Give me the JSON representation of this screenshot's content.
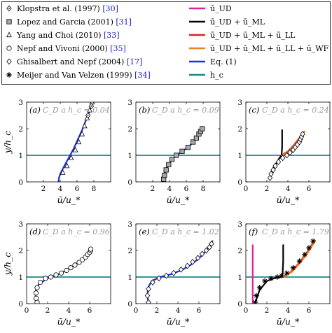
{
  "legend": {
    "datasets": [
      {
        "text": "Klopstra et al. (1997)",
        "ref": "[30]",
        "marker": "diamond-dot"
      },
      {
        "text": "Lopez and Garcia (2001)",
        "ref": "[31]",
        "marker": "square-grey"
      },
      {
        "text": "Yang and Choi (2010)",
        "ref": "[33]",
        "marker": "triangle"
      },
      {
        "text": "Nepf and Vivoni (2000)",
        "ref": "[35]",
        "marker": "circle"
      },
      {
        "text": "Ghisalbert and Nepf (2004)",
        "ref": "[17]",
        "marker": "diamond"
      },
      {
        "text": "Meijer and Van Velzen (1999)",
        "ref": "[34]",
        "marker": "asterisk"
      }
    ],
    "models": [
      {
        "text": "ū_UD",
        "color": "#e020a0"
      },
      {
        "text": "ū_UD + ū_ML",
        "color": "#000000"
      },
      {
        "text": "ū_UD + ū_ML + ū_LL",
        "color": "#e02020"
      },
      {
        "text": "ū_UD + ū_ML + ū_LL + ū_WF",
        "color": "#f08020"
      },
      {
        "text": "Eq. (1)",
        "color": "#1f2fd0"
      },
      {
        "text": "h_c",
        "color": "#1a8a8a"
      }
    ]
  },
  "axes_text": {
    "ylabel": "y/h_c",
    "xlabel": "ū/u_*"
  },
  "chart_data": [
    {
      "type": "line",
      "id": "a",
      "label": "(a)",
      "cd_label": "C_D a h_c = 0.04",
      "xlim": [
        0,
        10
      ],
      "ylim": [
        0,
        3
      ],
      "xticks": [
        2,
        4,
        6,
        8
      ],
      "yticks": [
        0,
        1,
        2,
        3
      ],
      "hc": 1,
      "series": [
        {
          "name": "Yang and Choi (2010)",
          "kind": "markers",
          "marker": "triangle",
          "x": [
            4.3,
            4.8,
            5.3,
            5.8,
            6.2,
            6.6,
            6.9,
            7.2,
            7.5,
            7.8,
            8.0,
            8.2
          ],
          "y": [
            0.35,
            0.6,
            0.9,
            1.2,
            1.5,
            1.8,
            2.1,
            2.4,
            2.7,
            3.0,
            3.25,
            3.45
          ]
        },
        {
          "name": "Klopstra et al. (1997)",
          "kind": "markers",
          "marker": "diamond-dot",
          "x": [
            7.3,
            7.7,
            8.0,
            8.3,
            8.5
          ],
          "y": [
            2.5,
            2.85,
            3.1,
            3.35,
            3.55
          ]
        },
        {
          "name": "Eq. (1)",
          "kind": "line",
          "color": "#1f2fd0",
          "x": [
            3.8,
            3.85,
            4.0,
            4.4,
            5.0,
            5.6,
            6.1,
            6.6,
            7.1,
            7.6,
            8.1,
            8.6
          ],
          "y": [
            0.0,
            0.15,
            0.3,
            0.55,
            0.9,
            1.25,
            1.6,
            1.95,
            2.35,
            2.75,
            3.15,
            3.55
          ]
        }
      ]
    },
    {
      "type": "line",
      "id": "b",
      "label": "(b)",
      "cd_label": "C_D a h_c = 0.09",
      "xlim": [
        0,
        10
      ],
      "ylim": [
        0,
        3
      ],
      "xticks": [
        2,
        4,
        6,
        8
      ],
      "yticks": [
        0,
        1,
        2,
        3
      ],
      "hc": 1,
      "series": [
        {
          "name": "Lopez and Garcia (2001)",
          "kind": "markers",
          "marker": "square-grey",
          "x": [
            3.3,
            3.4,
            3.6,
            3.9,
            4.3,
            4.8,
            5.5,
            6.2,
            6.8,
            7.2,
            7.5,
            7.7,
            7.9
          ],
          "y": [
            0.1,
            0.25,
            0.45,
            0.65,
            0.85,
            1.0,
            1.15,
            1.3,
            1.5,
            1.65,
            1.8,
            1.9,
            2.0
          ]
        },
        {
          "name": "Eq. (1)",
          "kind": "line",
          "color": "#1f2fd0",
          "x": [
            3.2,
            3.3,
            3.5,
            3.8,
            4.2,
            4.7,
            5.4,
            6.1,
            6.7,
            7.2,
            7.6,
            7.9
          ],
          "y": [
            0.0,
            0.2,
            0.4,
            0.6,
            0.8,
            0.97,
            1.12,
            1.28,
            1.45,
            1.62,
            1.8,
            1.97
          ]
        }
      ]
    },
    {
      "type": "line",
      "id": "c",
      "label": "(c)",
      "cd_label": "C_D a h_c = 0.24",
      "xlim": [
        0,
        8
      ],
      "ylim": [
        0,
        3
      ],
      "xticks": [
        0,
        2,
        4,
        6
      ],
      "yticks": [
        0,
        1,
        2,
        3
      ],
      "hc": 1,
      "series": [
        {
          "name": "ū_UD + ū_ML",
          "kind": "line",
          "color": "#000000",
          "x": [
            2.3,
            2.4,
            2.6,
            2.9,
            3.2,
            3.4,
            3.45,
            3.45
          ],
          "y": [
            0.1,
            0.3,
            0.5,
            0.7,
            0.9,
            1.0,
            1.3,
            1.95
          ]
        },
        {
          "name": "ū_UD + ū_ML + ū_LL",
          "kind": "line",
          "color": "#e02020",
          "x": [
            3.4,
            4.0,
            4.5,
            4.9,
            5.2,
            5.5
          ],
          "y": [
            1.0,
            1.15,
            1.35,
            1.55,
            1.7,
            1.88
          ]
        },
        {
          "name": "ū_UD + ū_ML + ū_LL + ū_WF",
          "kind": "line",
          "color": "#f08020",
          "x": [
            3.5,
            4.1,
            4.6,
            5.0,
            5.3,
            5.6
          ],
          "y": [
            1.0,
            1.15,
            1.35,
            1.55,
            1.72,
            1.9
          ]
        },
        {
          "name": "Ghisalbert and Nepf (2004)",
          "kind": "markers",
          "marker": "diamond",
          "x": [
            2.3,
            2.4,
            2.6,
            2.8,
            3.1,
            3.5,
            3.9,
            4.2,
            4.5,
            4.7,
            4.9,
            5.1,
            5.2,
            5.3,
            5.4
          ],
          "y": [
            0.15,
            0.3,
            0.45,
            0.6,
            0.75,
            0.9,
            1.0,
            1.1,
            1.2,
            1.3,
            1.4,
            1.5,
            1.6,
            1.7,
            1.8
          ]
        }
      ]
    },
    {
      "type": "line",
      "id": "d",
      "label": "(d)",
      "cd_label": "C_D a h_c = 0.96",
      "xlim": [
        0,
        8
      ],
      "ylim": [
        0,
        3
      ],
      "xticks": [
        0,
        2,
        4,
        6
      ],
      "yticks": [
        0,
        1,
        2,
        3
      ],
      "hc": 1,
      "series": [
        {
          "name": "Eq. (1)",
          "kind": "line",
          "color": "#1f2fd0",
          "x": [
            1.0,
            0.85,
            0.9,
            1.2,
            2.0,
            3.0,
            3.8,
            4.6,
            5.2,
            5.7,
            6.0,
            6.1
          ],
          "y": [
            0.05,
            0.3,
            0.55,
            0.75,
            0.95,
            1.1,
            1.25,
            1.45,
            1.65,
            1.85,
            2.0,
            2.1
          ]
        },
        {
          "name": "Nepf and Vivoni (2000)",
          "kind": "markers",
          "marker": "circle",
          "x": [
            1.0,
            0.9,
            0.9,
            1.0,
            1.3,
            1.8,
            2.3,
            2.8,
            3.3,
            3.8,
            4.2,
            4.6,
            5.0,
            5.3,
            5.6,
            5.8,
            6.0,
            6.1,
            6.1
          ],
          "y": [
            0.05,
            0.2,
            0.4,
            0.6,
            0.8,
            0.95,
            1.0,
            1.08,
            1.15,
            1.25,
            1.35,
            1.45,
            1.55,
            1.65,
            1.75,
            1.85,
            1.93,
            2.0,
            2.05
          ]
        }
      ]
    },
    {
      "type": "line",
      "id": "e",
      "label": "(e)",
      "cd_label": "C_D a h_c = 1.02",
      "xlim": [
        0,
        8
      ],
      "ylim": [
        0,
        3
      ],
      "xticks": [
        0,
        2,
        4,
        6
      ],
      "yticks": [
        0,
        1,
        2,
        3
      ],
      "hc": 1,
      "series": [
        {
          "name": "Eq. (1)",
          "kind": "line",
          "color": "#1f2fd0",
          "x": [
            1.2,
            1.1,
            1.15,
            1.5,
            2.3,
            3.3,
            4.3,
            5.2,
            6.0,
            6.6,
            7.0,
            7.3
          ],
          "y": [
            0.0,
            0.3,
            0.6,
            0.85,
            1.0,
            1.1,
            1.25,
            1.45,
            1.7,
            1.95,
            2.15,
            2.35
          ]
        },
        {
          "name": "Ghisalbert and Nepf (2004)",
          "kind": "markers",
          "marker": "diamond",
          "x": [
            1.2,
            1.1,
            1.2,
            1.6,
            2.2,
            2.9,
            3.6,
            4.3,
            4.9,
            5.4,
            5.9,
            6.3,
            6.7,
            7.0,
            7.2
          ],
          "y": [
            0.05,
            0.3,
            0.55,
            0.8,
            0.95,
            1.05,
            1.15,
            1.28,
            1.42,
            1.57,
            1.72,
            1.87,
            2.0,
            2.12,
            2.25
          ]
        }
      ]
    },
    {
      "type": "line",
      "id": "f",
      "label": "(f)",
      "cd_label": "C_D a h_c = 1.79",
      "xlim": [
        0,
        8
      ],
      "ylim": [
        0,
        3
      ],
      "xticks": [
        0,
        2,
        4,
        6
      ],
      "yticks": [
        0,
        1,
        2,
        3
      ],
      "hc": 1,
      "series": [
        {
          "name": "ū_UD",
          "kind": "line",
          "color": "#e020a0",
          "x": [
            0.65,
            0.65
          ],
          "y": [
            0.0,
            2.2
          ]
        },
        {
          "name": "ū_UD + ū_ML",
          "kind": "line",
          "color": "#000000",
          "x": [
            0.9,
            1.3,
            2.0,
            2.8,
            3.3,
            3.5,
            3.55,
            3.55
          ],
          "y": [
            0.05,
            0.5,
            0.85,
            0.97,
            1.0,
            1.1,
            1.6,
            2.2
          ]
        },
        {
          "name": "ū_UD + ū_ML + ū_LL",
          "kind": "line",
          "color": "#e02020",
          "x": [
            3.5,
            4.3,
            5.0,
            5.6,
            6.1,
            6.5
          ],
          "y": [
            1.0,
            1.2,
            1.5,
            1.8,
            2.1,
            2.35
          ]
        },
        {
          "name": "ū_UD + ū_ML + ū_LL + ū_WF",
          "kind": "line",
          "color": "#f08020",
          "x": [
            3.6,
            4.4,
            5.1,
            5.7,
            6.2,
            6.6
          ],
          "y": [
            1.0,
            1.2,
            1.5,
            1.8,
            2.1,
            2.37
          ]
        },
        {
          "name": "Meijer and Van Velzen (1999)",
          "kind": "markers",
          "marker": "asterisk",
          "x": [
            0.9,
            1.0,
            1.3,
            1.8,
            2.4,
            3.0,
            3.4,
            3.9,
            4.5,
            5.1,
            5.6,
            6.0,
            6.4
          ],
          "y": [
            0.05,
            0.3,
            0.6,
            0.85,
            0.95,
            1.0,
            1.05,
            1.15,
            1.35,
            1.6,
            1.85,
            2.1,
            2.35
          ]
        }
      ]
    }
  ]
}
